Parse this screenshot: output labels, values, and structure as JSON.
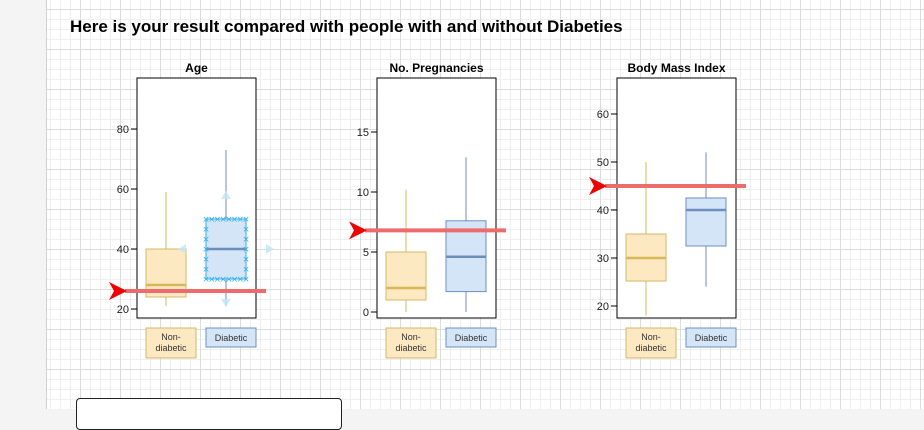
{
  "heading": "Here is your result compared with people with and without Diabeties",
  "colors": {
    "nondiabetic_fill": "#fce9c1",
    "nondiabetic_stroke": "#d4b866",
    "nondiabetic_median": "#d8b858",
    "diabetic_fill": "#d5e5f8",
    "diabetic_stroke": "#6c8ebf",
    "diabetic_median": "#6c8ebf",
    "result_line": "#ee6b6b",
    "arrow": "#ee0000",
    "selection": "#29b6f2"
  },
  "chart_data": [
    {
      "type": "box",
      "title": "Age",
      "ylim": [
        17,
        97
      ],
      "ticks": [
        20,
        40,
        60,
        80
      ],
      "categories": [
        "Non-diabetic",
        "Diabetic"
      ],
      "category_labels": [
        [
          "Non-",
          "diabetic"
        ],
        [
          "Diabetic"
        ]
      ],
      "series": [
        {
          "name": "Non-diabetic",
          "min": 21,
          "q1": 24,
          "median": 28,
          "q3": 40,
          "max": 59
        },
        {
          "name": "Diabetic",
          "min": 21,
          "q1": 30,
          "median": 40,
          "q3": 50,
          "max": 73
        }
      ],
      "your_result": 26,
      "selected_box": 1
    },
    {
      "type": "box",
      "title": "No. Pregnancies",
      "ylim": [
        -0.5,
        19.5
      ],
      "ticks": [
        0,
        5,
        10,
        15
      ],
      "categories": [
        "Non-diabetic",
        "Diabetic"
      ],
      "category_labels": [
        [
          "Non-",
          "diabetic"
        ],
        [
          "Diabetic"
        ]
      ],
      "series": [
        {
          "name": "Non-diabetic",
          "min": 0,
          "q1": 1,
          "median": 2,
          "q3": 5,
          "max": 10.2
        },
        {
          "name": "Diabetic",
          "min": 0,
          "q1": 1.7,
          "median": 4.6,
          "q3": 7.6,
          "max": 12.9
        }
      ],
      "your_result": 6.8
    },
    {
      "type": "box",
      "title": "Body Mass Index",
      "ylim": [
        17.5,
        67.5
      ],
      "ticks": [
        20,
        30,
        40,
        50,
        60
      ],
      "categories": [
        "Non-diabetic",
        "Diabetic"
      ],
      "category_labels": [
        [
          "Non-",
          "diabetic"
        ],
        [
          "Diabetic"
        ]
      ],
      "series": [
        {
          "name": "Non-diabetic",
          "min": 18,
          "q1": 25.2,
          "median": 30,
          "q3": 35,
          "max": 50
        },
        {
          "name": "Diabetic",
          "min": 24,
          "q1": 32.5,
          "median": 40,
          "q3": 42.5,
          "max": 52
        }
      ],
      "your_result": 45
    }
  ]
}
